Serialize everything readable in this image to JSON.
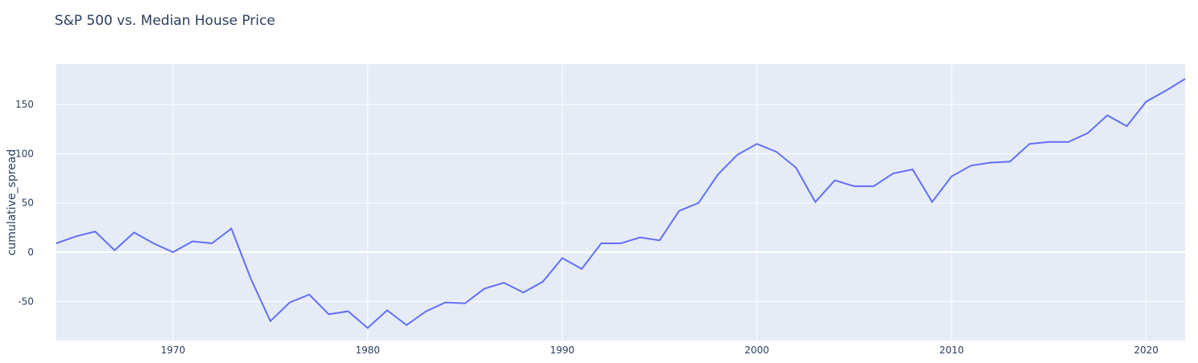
{
  "chart_data": {
    "type": "line",
    "title": "S&P 500 vs. Median House Price",
    "y_label": "cumulative_spread",
    "x": [
      1964,
      1965,
      1966,
      1967,
      1968,
      1969,
      1970,
      1971,
      1972,
      1973,
      1974,
      1975,
      1976,
      1977,
      1978,
      1979,
      1980,
      1981,
      1982,
      1983,
      1984,
      1985,
      1986,
      1987,
      1988,
      1989,
      1990,
      1991,
      1992,
      1993,
      1994,
      1995,
      1996,
      1997,
      1998,
      1999,
      2000,
      2001,
      2002,
      2003,
      2004,
      2005,
      2006,
      2007,
      2008,
      2009,
      2010,
      2011,
      2012,
      2013,
      2014,
      2015,
      2016,
      2017,
      2018,
      2019,
      2020,
      2021,
      2022
    ],
    "series": [
      {
        "color": "#636efa",
        "values": [
          9,
          16,
          21,
          2,
          20,
          9,
          0,
          11,
          9,
          24,
          -27,
          -70,
          -51,
          -43,
          -63,
          -60,
          -77,
          -59,
          -74,
          -60,
          -51,
          -52,
          -37,
          -31,
          -41,
          -30,
          -6,
          -17,
          9,
          9,
          15,
          12,
          42,
          50,
          79,
          99,
          110,
          102,
          86,
          51,
          73,
          67,
          67,
          80,
          84,
          51,
          77,
          88,
          91,
          92,
          110,
          112,
          112,
          121,
          139,
          128,
          153,
          164,
          176
        ]
      }
    ],
    "xlim": [
      1964,
      2022
    ],
    "ylim": [
      -89.7,
      190.9
    ],
    "xticks": [
      1970,
      1980,
      1990,
      2000,
      2010,
      2020
    ],
    "yticks": [
      -50,
      0,
      50,
      100,
      150
    ],
    "grid": true,
    "plot_bgcolor": "#e5ecf6"
  }
}
